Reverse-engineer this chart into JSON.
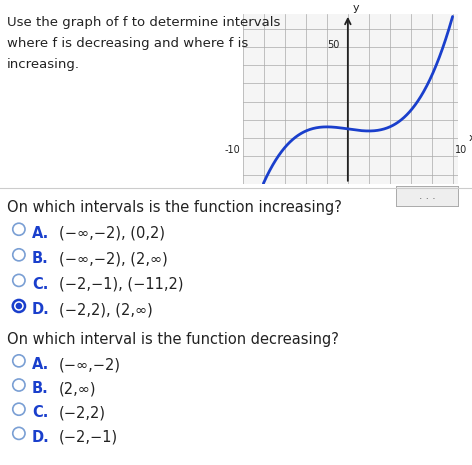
{
  "problem_text_line1": "Use the graph of f to determine intervals",
  "problem_text_line2": "where f is decreasing and where f is",
  "problem_text_line3": "increasing.",
  "graph_xlim": [
    -10,
    10
  ],
  "graph_ylim": [
    -25,
    65
  ],
  "curve_color": "#1a3fcc",
  "curve_linewidth": 2.0,
  "q1_text": "On which intervals is the function increasing?",
  "q1_options": [
    {
      "label": "A.",
      "text": "(−∞,−2), (0,2)"
    },
    {
      "label": "B.",
      "text": "(−∞,−2), (2,∞)"
    },
    {
      "label": "C.",
      "text": "(−2,−1), (−11,2)"
    },
    {
      "label": "D.",
      "text": "(−2,2), (2,∞)"
    }
  ],
  "q1_selected": 3,
  "q2_text": "On which interval is the function decreasing?",
  "q2_options": [
    {
      "label": "A.",
      "text": "(−∞,−2)"
    },
    {
      "label": "B.",
      "text": "(2,∞)"
    },
    {
      "label": "C.",
      "text": "(−2,2)"
    },
    {
      "label": "D.",
      "text": "(−2,−1)"
    }
  ],
  "q2_selected": -1,
  "selected_ring_color": "#1a3fcc",
  "selected_fill_color": "#1a3fcc",
  "unselected_ring_color": "#7a9fd4",
  "separator_color": "#cccccc",
  "dots_button_color": "#eeeeee",
  "dots_border_color": "#aaaaaa",
  "background_color": "#ffffff",
  "label_color": "#1a3fcc",
  "text_color": "#222222",
  "font_size_problem": 9.5,
  "font_size_question": 10.5,
  "font_size_option": 10.5,
  "graph_grid_color": "#aaaaaa",
  "graph_axis_color": "#222222",
  "graph_tick_label_size": 7.0
}
